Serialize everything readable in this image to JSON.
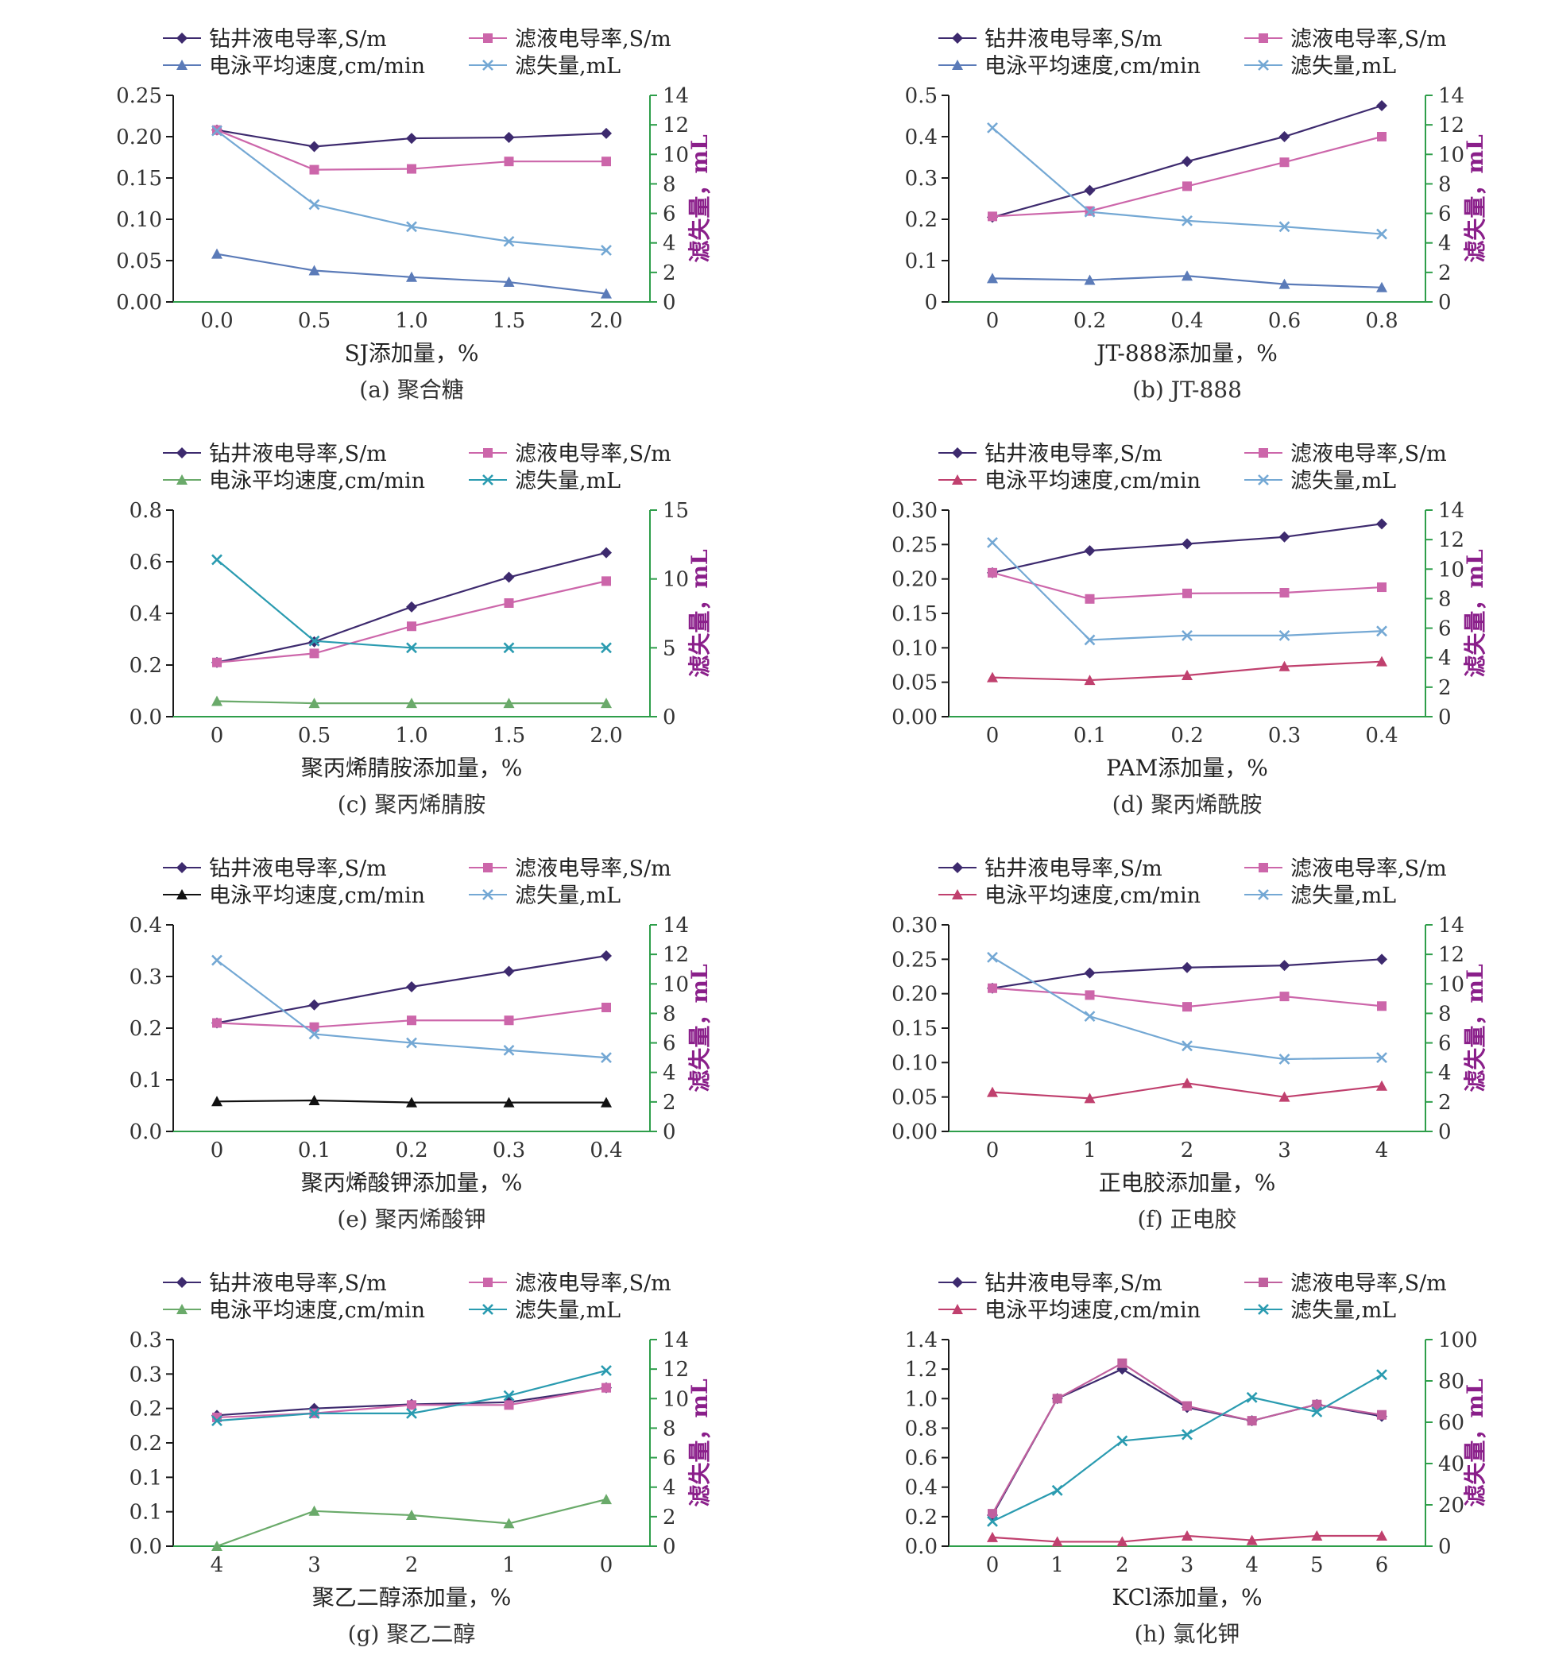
{
  "colors": {
    "cond_mud": "#3d2a6e",
    "cond_filtrate": "#cc66aa",
    "cond_filtrate_h": "#c0609e",
    "ep_blue": "#5b7bb8",
    "ep_green": "#6aaa6a",
    "ep_red": "#c0406e",
    "ep_black": "#111111",
    "loss_light": "#74a8d4",
    "loss_teal": "#2a9bb0",
    "left_axis": "#1a1a1a",
    "right_axis": "#2e9e4a",
    "tick_text": "#333333",
    "right_title": "#8a1f8a"
  },
  "chart_data": [
    {
      "id": "a",
      "type": "line",
      "caption": "(a)  聚合糖",
      "xlabel": "SJ添加量，%",
      "y2label": "滤失量，mL",
      "x": [
        0.0,
        0.5,
        1.0,
        1.5,
        2.0
      ],
      "xticks": [
        "0.0",
        "0.5",
        "1.0",
        "1.5",
        "2.0"
      ],
      "ylim": [
        0,
        0.25
      ],
      "yticks": [
        "0.00",
        "0.05",
        "0.10",
        "0.15",
        "0.20",
        "0.25"
      ],
      "y2lim": [
        0,
        14
      ],
      "y2ticks": [
        "0",
        "2",
        "4",
        "6",
        "8",
        "10",
        "12",
        "14"
      ],
      "legend_layout": "2x2",
      "series": [
        {
          "name": "钻井液电导率,S/m",
          "axis": "left",
          "marker": "diamond",
          "color": "cond_mud",
          "values": [
            0.208,
            0.188,
            0.198,
            0.199,
            0.204
          ]
        },
        {
          "name": "滤液电导率,S/m",
          "axis": "left",
          "marker": "square",
          "color": "cond_filtrate",
          "values": [
            0.208,
            0.16,
            0.161,
            0.17,
            0.17
          ]
        },
        {
          "name": "电泳平均速度,cm/min",
          "axis": "left",
          "marker": "triangle",
          "color": "ep_blue",
          "values": [
            0.058,
            0.038,
            0.03,
            0.024,
            0.01
          ]
        },
        {
          "name": "滤失量,mL",
          "axis": "right",
          "marker": "x",
          "color": "loss_light",
          "values": [
            11.6,
            6.6,
            5.1,
            4.1,
            3.5
          ]
        }
      ]
    },
    {
      "id": "b",
      "type": "line",
      "caption": "(b)  JT-888",
      "xlabel": "JT-888添加量，%",
      "y2label": "滤失量，mL",
      "x": [
        0,
        0.2,
        0.4,
        0.6,
        0.8
      ],
      "xticks": [
        "0",
        "0.2",
        "0.4",
        "0.6",
        "0.8"
      ],
      "ylim": [
        0,
        0.5
      ],
      "yticks": [
        "0",
        "0.1",
        "0.2",
        "0.3",
        "0.4",
        "0.5"
      ],
      "y2lim": [
        0,
        14
      ],
      "y2ticks": [
        "0",
        "2",
        "4",
        "6",
        "8",
        "10",
        "12",
        "14"
      ],
      "legend_layout": "2x2",
      "series": [
        {
          "name": "钻井液电导率,S/m",
          "axis": "left",
          "marker": "diamond",
          "color": "cond_mud",
          "values": [
            0.205,
            0.27,
            0.34,
            0.4,
            0.475
          ]
        },
        {
          "name": "滤液电导率,S/m",
          "axis": "left",
          "marker": "square",
          "color": "cond_filtrate",
          "values": [
            0.207,
            0.22,
            0.28,
            0.338,
            0.4
          ]
        },
        {
          "name": "电泳平均速度,cm/min",
          "axis": "left",
          "marker": "triangle",
          "color": "ep_blue",
          "values": [
            0.057,
            0.053,
            0.063,
            0.043,
            0.035
          ]
        },
        {
          "name": "滤失量,mL",
          "axis": "right",
          "marker": "x",
          "color": "loss_light",
          "values": [
            11.8,
            6.1,
            5.5,
            5.1,
            4.6
          ]
        }
      ]
    },
    {
      "id": "c",
      "type": "line",
      "caption": "(c)  聚丙烯腈胺",
      "xlabel": "聚丙烯腈胺添加量，%",
      "y2label": "滤失量，mL",
      "x": [
        0,
        0.5,
        1.0,
        1.5,
        2.0
      ],
      "xticks": [
        "0",
        "0.5",
        "1.0",
        "1.5",
        "2.0"
      ],
      "ylim": [
        0,
        0.8
      ],
      "yticks": [
        "0.0",
        "0.2",
        "0.4",
        "0.6",
        "0.8"
      ],
      "y2lim": [
        0,
        15
      ],
      "y2ticks": [
        "0",
        "5",
        "10",
        "15"
      ],
      "legend_layout": "2x2",
      "series": [
        {
          "name": "钻井液电导率,S/m",
          "axis": "left",
          "marker": "diamond",
          "color": "cond_mud",
          "values": [
            0.21,
            0.29,
            0.425,
            0.54,
            0.635
          ]
        },
        {
          "name": "滤液电导率,S/m",
          "axis": "left",
          "marker": "square",
          "color": "cond_filtrate",
          "values": [
            0.21,
            0.245,
            0.35,
            0.44,
            0.525
          ]
        },
        {
          "name": "电泳平均速度,cm/min",
          "axis": "left",
          "marker": "triangle",
          "color": "ep_green",
          "values": [
            0.06,
            0.052,
            0.052,
            0.052,
            0.052
          ]
        },
        {
          "name": "滤失量,mL",
          "axis": "right",
          "marker": "x",
          "color": "loss_teal",
          "values": [
            11.4,
            5.5,
            5.0,
            5.0,
            5.0
          ]
        }
      ]
    },
    {
      "id": "d",
      "type": "line",
      "caption": "(d)  聚丙烯酰胺",
      "xlabel": "PAM添加量，%",
      "y2label": "滤失量，mL",
      "x": [
        0,
        0.1,
        0.2,
        0.3,
        0.4
      ],
      "xticks": [
        "0",
        "0.1",
        "0.2",
        "0.3",
        "0.4"
      ],
      "ylim": [
        0,
        0.3
      ],
      "yticks": [
        "0.00",
        "0.05",
        "0.10",
        "0.15",
        "0.20",
        "0.25",
        "0.30"
      ],
      "y2lim": [
        0,
        14
      ],
      "y2ticks": [
        "0",
        "2",
        "4",
        "6",
        "8",
        "10",
        "12",
        "14"
      ],
      "legend_layout": "2x2",
      "series": [
        {
          "name": "钻井液电导率,S/m",
          "axis": "left",
          "marker": "diamond",
          "color": "cond_mud",
          "values": [
            0.209,
            0.241,
            0.251,
            0.261,
            0.28
          ]
        },
        {
          "name": "滤液电导率,S/m",
          "axis": "left",
          "marker": "square",
          "color": "cond_filtrate",
          "values": [
            0.209,
            0.171,
            0.179,
            0.18,
            0.188
          ]
        },
        {
          "name": "电泳平均速度,cm/min",
          "axis": "left",
          "marker": "triangle",
          "color": "ep_red",
          "values": [
            0.057,
            0.053,
            0.06,
            0.073,
            0.08
          ]
        },
        {
          "name": "滤失量,mL",
          "axis": "right",
          "marker": "x",
          "color": "loss_light",
          "values": [
            11.8,
            5.2,
            5.5,
            5.5,
            5.8
          ]
        }
      ]
    },
    {
      "id": "e",
      "type": "line",
      "caption": "(e)  聚丙烯酸钾",
      "xlabel": "聚丙烯酸钾添加量，%",
      "y2label": "滤失量，mL",
      "x": [
        0,
        0.1,
        0.2,
        0.3,
        0.4
      ],
      "xticks": [
        "0",
        "0.1",
        "0.2",
        "0.3",
        "0.4"
      ],
      "ylim": [
        0,
        0.4
      ],
      "yticks": [
        "0.0",
        "0.1",
        "0.2",
        "0.3",
        "0.4"
      ],
      "y2lim": [
        0,
        14
      ],
      "y2ticks": [
        "0",
        "2",
        "4",
        "6",
        "8",
        "10",
        "12",
        "14"
      ],
      "legend_layout": "2x2",
      "series": [
        {
          "name": "钻井液电导率,S/m",
          "axis": "left",
          "marker": "diamond",
          "color": "cond_mud",
          "values": [
            0.21,
            0.245,
            0.28,
            0.31,
            0.34
          ]
        },
        {
          "name": "滤液电导率,S/m",
          "axis": "left",
          "marker": "square",
          "color": "cond_filtrate",
          "values": [
            0.21,
            0.202,
            0.215,
            0.215,
            0.24
          ]
        },
        {
          "name": "电泳平均速度,cm/min",
          "axis": "left",
          "marker": "triangle",
          "color": "ep_black",
          "values": [
            0.058,
            0.06,
            0.056,
            0.056,
            0.056
          ]
        },
        {
          "name": "滤失量,mL",
          "axis": "right",
          "marker": "x",
          "color": "loss_light",
          "values": [
            11.6,
            6.6,
            6.0,
            5.5,
            5.0
          ]
        }
      ]
    },
    {
      "id": "f",
      "type": "line",
      "caption": "(f)  正电胶",
      "xlabel": "正电胶添加量，%",
      "y2label": "滤失量，mL",
      "x": [
        0,
        1,
        2,
        3,
        4
      ],
      "xticks": [
        "0",
        "1",
        "2",
        "3",
        "4"
      ],
      "ylim": [
        0,
        0.3
      ],
      "yticks": [
        "0.00",
        "0.05",
        "0.10",
        "0.15",
        "0.20",
        "0.25",
        "0.30"
      ],
      "y2lim": [
        0,
        14
      ],
      "y2ticks": [
        "0",
        "2",
        "4",
        "6",
        "8",
        "10",
        "12",
        "14"
      ],
      "legend_layout": "2x2",
      "series": [
        {
          "name": "钻井液电导率,S/m",
          "axis": "left",
          "marker": "diamond",
          "color": "cond_mud",
          "values": [
            0.208,
            0.23,
            0.238,
            0.241,
            0.25
          ]
        },
        {
          "name": "滤液电导率,S/m",
          "axis": "left",
          "marker": "square",
          "color": "cond_filtrate",
          "values": [
            0.208,
            0.198,
            0.181,
            0.196,
            0.182
          ]
        },
        {
          "name": "电泳平均速度,cm/min",
          "axis": "left",
          "marker": "triangle",
          "color": "ep_red",
          "values": [
            0.057,
            0.048,
            0.07,
            0.05,
            0.066
          ]
        },
        {
          "name": "滤失量,mL",
          "axis": "right",
          "marker": "x",
          "color": "loss_light",
          "values": [
            11.8,
            7.8,
            5.8,
            4.9,
            5.0
          ]
        }
      ]
    },
    {
      "id": "g",
      "type": "line",
      "caption": "(g)  聚乙二醇",
      "xlabel": "聚乙二醇添加量，%",
      "y2label": "滤失量，mL",
      "x": [
        4,
        3,
        2,
        1,
        0
      ],
      "xticks": [
        "4",
        "3",
        "2",
        "1",
        "0"
      ],
      "ylim": [
        0,
        0.3
      ],
      "yticks": [
        "0.0",
        "0.1",
        "0.1",
        "0.2",
        "0.2",
        "0.3",
        "0.3"
      ],
      "y2lim": [
        0,
        14
      ],
      "y2ticks": [
        "0",
        "2",
        "4",
        "6",
        "8",
        "10",
        "12",
        "14"
      ],
      "legend_layout": "2x2",
      "series": [
        {
          "name": "钻井液电导率,S/m",
          "axis": "left",
          "marker": "diamond",
          "color": "cond_mud",
          "values": [
            0.19,
            0.2,
            0.206,
            0.209,
            0.23
          ]
        },
        {
          "name": "滤液电导率,S/m",
          "axis": "left",
          "marker": "square",
          "color": "cond_filtrate",
          "values": [
            0.187,
            0.193,
            0.205,
            0.205,
            0.23
          ]
        },
        {
          "name": "电泳平均速度,cm/min",
          "axis": "left",
          "marker": "triangle",
          "color": "ep_green",
          "values": [
            0.0,
            0.051,
            0.045,
            0.033,
            0.068
          ]
        },
        {
          "name": "滤失量,mL",
          "axis": "right",
          "marker": "x",
          "color": "loss_teal",
          "values": [
            8.5,
            9.0,
            9.0,
            10.2,
            11.9
          ]
        }
      ]
    },
    {
      "id": "h",
      "type": "line",
      "caption": "(h)  氯化钾",
      "xlabel": "KCl添加量，%",
      "y2label": "滤失量，mL",
      "x": [
        0,
        1,
        2,
        3,
        4,
        5,
        6
      ],
      "xticks": [
        "0",
        "1",
        "2",
        "3",
        "4",
        "5",
        "6"
      ],
      "ylim": [
        0,
        1.4
      ],
      "yticks": [
        "0.0",
        "0.2",
        "0.4",
        "0.6",
        "0.8",
        "1.0",
        "1.2",
        "1.4"
      ],
      "y2lim": [
        0,
        100
      ],
      "y2ticks": [
        "0",
        "20",
        "40",
        "60",
        "80",
        "100"
      ],
      "legend_layout": "2x2",
      "series": [
        {
          "name": "钻井液电导率,S/m",
          "axis": "left",
          "marker": "diamond",
          "color": "cond_mud",
          "values": [
            0.21,
            1.0,
            1.2,
            0.94,
            0.85,
            0.96,
            0.88
          ]
        },
        {
          "name": "滤液电导率,S/m",
          "axis": "left",
          "marker": "square",
          "color": "cond_filtrate_h",
          "values": [
            0.22,
            1.0,
            1.24,
            0.95,
            0.85,
            0.96,
            0.89
          ]
        },
        {
          "name": "电泳平均速度,cm/min",
          "axis": "left",
          "marker": "triangle",
          "color": "ep_red",
          "values": [
            0.06,
            0.03,
            0.03,
            0.07,
            0.04,
            0.07,
            0.07
          ]
        },
        {
          "name": "滤失量,mL",
          "axis": "right",
          "marker": "x",
          "color": "loss_teal",
          "values": [
            12.0,
            27.0,
            51.0,
            54.0,
            72.0,
            65.0,
            83.0
          ]
        }
      ]
    }
  ]
}
